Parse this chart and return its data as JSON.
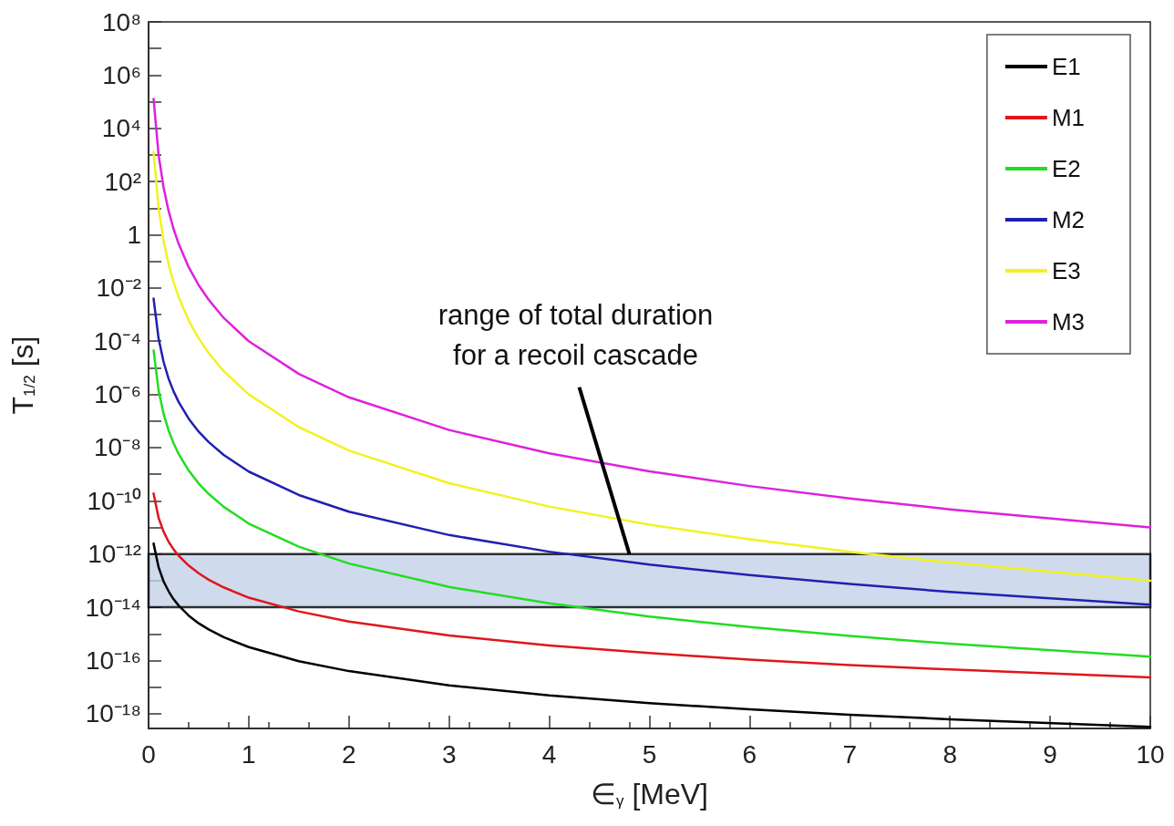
{
  "chart_data": {
    "type": "line",
    "xlabel": "∈$_{γ}$ [MeV]",
    "ylabel": "T$_{1/2}$ [s]",
    "x": [
      0.05,
      0.1,
      0.15,
      0.2,
      0.25,
      0.3,
      0.4,
      0.5,
      0.6,
      0.75,
      1,
      1.5,
      2,
      3,
      4,
      5,
      6,
      7,
      8,
      10
    ],
    "series": [
      {
        "name": "E1",
        "color": "#000000",
        "values": [
          2.5e-12,
          3.2e-13,
          9.4e-14,
          4e-14,
          2e-14,
          1.17e-14,
          4.9e-15,
          2.5e-15,
          1.47e-15,
          7.5e-16,
          3.2e-16,
          9.4e-17,
          4e-17,
          1.17e-17,
          4.9e-18,
          2.5e-18,
          1.47e-18,
          9.2e-19,
          6.2e-19,
          3.2e-19
        ]
      },
      {
        "name": "M1",
        "color": "#e0161c",
        "values": [
          1.9e-10,
          2.3e-11,
          7e-12,
          2.9e-12,
          1.5e-12,
          8.7e-13,
          3.7e-13,
          1.9e-13,
          1.09e-13,
          5.6e-14,
          2.3e-14,
          7e-15,
          2.9e-15,
          8.7e-16,
          3.7e-16,
          1.9e-16,
          1.09e-16,
          6.8e-17,
          4.6e-17,
          2.3e-17
        ]
      },
      {
        "name": "E2",
        "color": "#22dd22",
        "values": [
          4.5e-05,
          1.4e-06,
          1.86e-07,
          4.4e-08,
          1.45e-08,
          5.8e-09,
          1.38e-09,
          4.5e-10,
          1.82e-10,
          6e-11,
          1.4e-11,
          1.9e-12,
          4.4e-13,
          5.8e-14,
          1.4e-14,
          4.5e-15,
          1.8e-15,
          8.4e-16,
          4.3e-16,
          1.4e-16
        ]
      },
      {
        "name": "M2",
        "color": "#2020b0",
        "values": [
          0.004,
          0.000126,
          1.66e-05,
          3.9e-06,
          1.29e-06,
          5.2e-07,
          1.23e-07,
          4e-08,
          1.62e-08,
          5.3e-09,
          1.26e-09,
          1.66e-10,
          3.9e-11,
          5.2e-12,
          1.23e-12,
          4e-13,
          1.62e-13,
          7.5e-14,
          3.8e-14,
          1.26e-14
        ]
      },
      {
        "name": "E3",
        "color": "#f2f222",
        "values": [
          1280,
          10,
          0.59,
          0.078,
          0.0164,
          0.0046,
          0.00061,
          0.000128,
          3.6e-05,
          7.5e-06,
          1e-06,
          5.9e-08,
          7.8e-09,
          4.6e-10,
          6.1e-11,
          1.28e-11,
          3.6e-12,
          1.22e-12,
          4.8e-13,
          1e-13
        ]
      },
      {
        "name": "M3",
        "color": "#dd22dd",
        "values": [
          128000.0,
          1000,
          59,
          7.8,
          1.64,
          0.46,
          0.061,
          0.0128,
          0.0036,
          0.00075,
          0.0001,
          5.9e-06,
          7.8e-07,
          4.6e-08,
          6.1e-09,
          1.28e-09,
          3.6e-10,
          1.22e-10,
          4.8e-11,
          1e-11
        ]
      }
    ],
    "xlim": [
      0,
      10
    ],
    "xticks": [
      0,
      1,
      2,
      3,
      4,
      5,
      6,
      7,
      8,
      9,
      10
    ],
    "ylim": [
      2.8e-19,
      100000000.0
    ],
    "log": "y",
    "yticks": [
      {
        "value": 100000000.0,
        "label": "10⁸"
      },
      {
        "value": 10000000.0,
        "label": null
      },
      {
        "value": 1000000.0,
        "label": "10⁶"
      },
      {
        "value": 100000.0,
        "label": null
      },
      {
        "value": 10000.0,
        "label": "10⁴"
      },
      {
        "value": 1000.0,
        "label": null
      },
      {
        "value": 100,
        "label": "10²"
      },
      {
        "value": 10,
        "label": null
      },
      1,
      {
        "value": 0.1,
        "label": null
      },
      {
        "value": 0.01,
        "label": "10⁻²"
      },
      {
        "value": 0.001,
        "label": null
      },
      {
        "value": 0.0001,
        "label": "10⁻⁴"
      },
      {
        "value": 1e-05,
        "label": null
      },
      {
        "value": 1e-06,
        "label": "10⁻⁶"
      },
      {
        "value": 1e-07,
        "label": null
      },
      {
        "value": 1e-08,
        "label": "10⁻⁸"
      },
      {
        "value": 1e-09,
        "label": null
      },
      {
        "value": 1e-10,
        "label": "10⁻¹⁰"
      },
      {
        "value": 1e-11,
        "label": null
      },
      {
        "value": 1e-12,
        "label": "10⁻¹²"
      },
      {
        "value": 1e-13,
        "label": null
      },
      {
        "value": 1e-14,
        "label": "10⁻¹⁴"
      },
      {
        "value": 1e-15,
        "label": null
      },
      {
        "value": 1e-16,
        "label": "10⁻¹⁶"
      },
      {
        "value": 1e-17,
        "label": null
      },
      {
        "value": 1e-18,
        "label": "10⁻¹⁸"
      }
    ],
    "bands": [
      {
        "axis": "y",
        "from": 1e-14,
        "to": 1e-12,
        "color": "#c3d1e8"
      }
    ],
    "annotations": [
      {
        "text": "range of total duration\nfor a recoil cascade",
        "x": 4.8,
        "y": 1e-12
      }
    ],
    "legend": "top right",
    "grid": false,
    "marker": "none",
    "line_style": "solid"
  }
}
